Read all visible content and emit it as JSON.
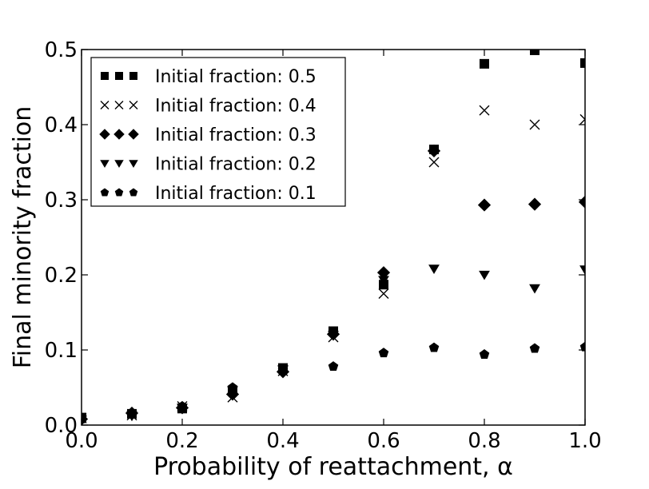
{
  "chart_data": {
    "type": "scatter",
    "xlabel": "Probability of reattachment, α",
    "ylabel": "Final minority fraction",
    "xlim": [
      0.0,
      1.0
    ],
    "ylim": [
      0.0,
      0.5
    ],
    "xticks": [
      "0.0",
      "0.2",
      "0.4",
      "0.6",
      "0.8",
      "1.0"
    ],
    "yticks": [
      "0.0",
      "0.1",
      "0.2",
      "0.3",
      "0.4",
      "0.5"
    ],
    "grid": false,
    "legend_position": "top-left",
    "x": [
      0.0,
      0.1,
      0.2,
      0.3,
      0.4,
      0.5,
      0.6,
      0.7,
      0.8,
      0.9,
      1.0
    ],
    "series": [
      {
        "name": "Initial fraction: 0.5",
        "marker": "square",
        "values": [
          0.01,
          0.015,
          0.022,
          0.045,
          0.076,
          0.125,
          0.187,
          0.367,
          0.481,
          0.499,
          0.482
        ]
      },
      {
        "name": "Initial fraction: 0.4",
        "marker": "x",
        "values": [
          0.009,
          0.013,
          0.025,
          0.037,
          0.072,
          0.117,
          0.175,
          0.35,
          0.419,
          0.4,
          0.407
        ]
      },
      {
        "name": "Initial fraction: 0.3",
        "marker": "diamond",
        "values": [
          0.008,
          0.016,
          0.023,
          0.041,
          0.071,
          0.121,
          0.203,
          0.365,
          0.293,
          0.294,
          0.297
        ]
      },
      {
        "name": "Initial fraction: 0.2",
        "marker": "triangle-down",
        "values": [
          0.007,
          0.012,
          0.023,
          0.046,
          0.074,
          0.12,
          0.193,
          0.208,
          0.2,
          0.182,
          0.207
        ]
      },
      {
        "name": "Initial fraction: 0.1",
        "marker": "pentagon",
        "values": [
          0.008,
          0.015,
          0.025,
          0.05,
          0.073,
          0.078,
          0.096,
          0.103,
          0.094,
          0.102,
          0.104
        ]
      }
    ]
  }
}
